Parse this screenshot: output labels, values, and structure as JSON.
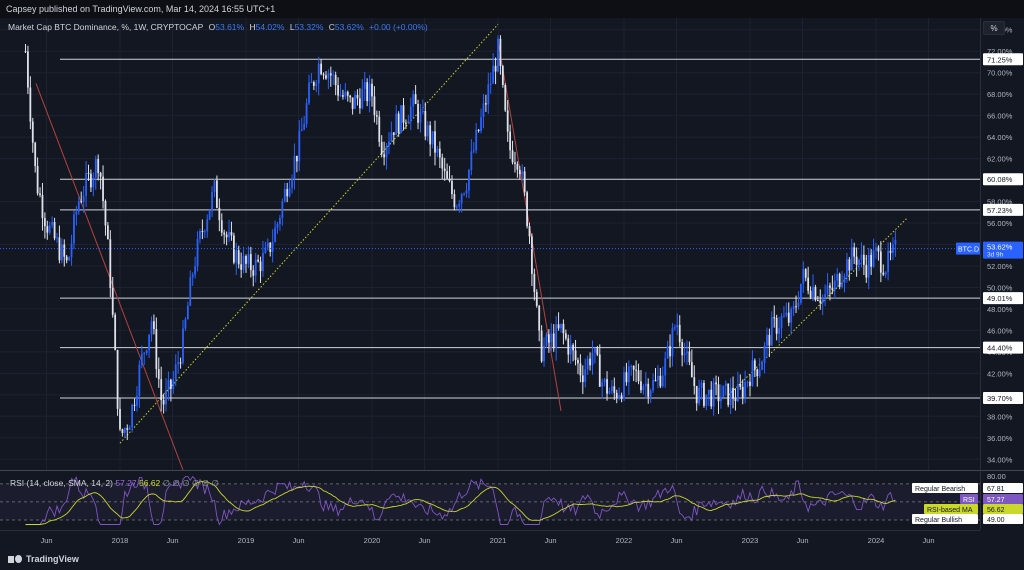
{
  "header": {
    "published": "Capsey published on TradingView.com, Mar 14, 2024 16:55 UTC+1"
  },
  "legend": {
    "symbol": "Market Cap BTC Dominance, %, 1W, CRYPTOCAP",
    "open_label": "O",
    "open": "53.61%",
    "high_label": "H",
    "high": "54.02%",
    "low_label": "L",
    "low": "53.32%",
    "close_label": "C",
    "close": "53.62%",
    "change": "+0.00 (+0.00%)"
  },
  "axis_mode_button": "%",
  "colors": {
    "up": "#2962ff",
    "down": "#e0e3eb",
    "background": "#131722",
    "rsi_line": "#7e57c2",
    "rsi_ma": "#c9d82b",
    "trendline": "#c9d82b",
    "downtrend": "#b2443d"
  },
  "chart_data": {
    "type": "candlestick",
    "symbol": "BTC.D",
    "timeframe": "1W",
    "ylim": [
      33,
      75
    ],
    "y_ticks": [
      "34.00%",
      "36.00%",
      "38.00%",
      "40.00%",
      "42.00%",
      "44.00%",
      "46.00%",
      "48.00%",
      "50.00%",
      "52.00%",
      "54.00%",
      "56.00%",
      "58.00%",
      "62.00%",
      "64.00%",
      "66.00%",
      "68.00%",
      "70.00%",
      "72.00%",
      "74.00%"
    ],
    "x_ticks": [
      "Jun",
      "2018",
      "Jun",
      "2019",
      "Jun",
      "2020",
      "Jun",
      "2021",
      "Jun",
      "2022",
      "Jun",
      "2023",
      "Jun",
      "2024",
      "Jun"
    ],
    "horizontal_levels": [
      {
        "label": "71.25%",
        "value": 71.25
      },
      {
        "label": "60.08%",
        "value": 60.08
      },
      {
        "label": "57.23%",
        "value": 57.23
      },
      {
        "label": "49.01%",
        "value": 49.01
      },
      {
        "label": "44.40%",
        "value": 44.4
      },
      {
        "label": "39.70%",
        "value": 39.7
      }
    ],
    "current_price": {
      "symbol": "BTC.D",
      "value": "53.62%",
      "countdown": "3d 9h"
    },
    "price_path": [
      {
        "t": "2017-04",
        "v": 72
      },
      {
        "t": "2017-05",
        "v": 60
      },
      {
        "t": "2017-06",
        "v": 56
      },
      {
        "t": "2017-08",
        "v": 52
      },
      {
        "t": "2017-09",
        "v": 58
      },
      {
        "t": "2017-10",
        "v": 60
      },
      {
        "t": "2017-11",
        "v": 62
      },
      {
        "t": "2017-12",
        "v": 52
      },
      {
        "t": "2018-01",
        "v": 36
      },
      {
        "t": "2018-02",
        "v": 38
      },
      {
        "t": "2018-03",
        "v": 43
      },
      {
        "t": "2018-04",
        "v": 47
      },
      {
        "t": "2018-05",
        "v": 39
      },
      {
        "t": "2018-06",
        "v": 41
      },
      {
        "t": "2018-07",
        "v": 45
      },
      {
        "t": "2018-08",
        "v": 52
      },
      {
        "t": "2018-09",
        "v": 56
      },
      {
        "t": "2018-10",
        "v": 59
      },
      {
        "t": "2018-11",
        "v": 55
      },
      {
        "t": "2018-12",
        "v": 53
      },
      {
        "t": "2019-01",
        "v": 52
      },
      {
        "t": "2019-02",
        "v": 52
      },
      {
        "t": "2019-03",
        "v": 53
      },
      {
        "t": "2019-04",
        "v": 56
      },
      {
        "t": "2019-05",
        "v": 60
      },
      {
        "t": "2019-06",
        "v": 63
      },
      {
        "t": "2019-07",
        "v": 68
      },
      {
        "t": "2019-08",
        "v": 71
      },
      {
        "t": "2019-09",
        "v": 70
      },
      {
        "t": "2019-10",
        "v": 68
      },
      {
        "t": "2019-11",
        "v": 67
      },
      {
        "t": "2019-12",
        "v": 68
      },
      {
        "t": "2020-01",
        "v": 68
      },
      {
        "t": "2020-02",
        "v": 63
      },
      {
        "t": "2020-03",
        "v": 65
      },
      {
        "t": "2020-04",
        "v": 66
      },
      {
        "t": "2020-05",
        "v": 67
      },
      {
        "t": "2020-06",
        "v": 65
      },
      {
        "t": "2020-07",
        "v": 63
      },
      {
        "t": "2020-08",
        "v": 60
      },
      {
        "t": "2020-09",
        "v": 58
      },
      {
        "t": "2020-10",
        "v": 60
      },
      {
        "t": "2020-11",
        "v": 64
      },
      {
        "t": "2020-12",
        "v": 68
      },
      {
        "t": "2021-01",
        "v": 72
      },
      {
        "t": "2021-02",
        "v": 63
      },
      {
        "t": "2021-03",
        "v": 62
      },
      {
        "t": "2021-04",
        "v": 55
      },
      {
        "t": "2021-05",
        "v": 44
      },
      {
        "t": "2021-06",
        "v": 45
      },
      {
        "t": "2021-07",
        "v": 46
      },
      {
        "t": "2021-08",
        "v": 44
      },
      {
        "t": "2021-09",
        "v": 42
      },
      {
        "t": "2021-10",
        "v": 44
      },
      {
        "t": "2021-11",
        "v": 41
      },
      {
        "t": "2021-12",
        "v": 40
      },
      {
        "t": "2022-01",
        "v": 41
      },
      {
        "t": "2022-02",
        "v": 42
      },
      {
        "t": "2022-03",
        "v": 41
      },
      {
        "t": "2022-04",
        "v": 41
      },
      {
        "t": "2022-05",
        "v": 43
      },
      {
        "t": "2022-06",
        "v": 47
      },
      {
        "t": "2022-07",
        "v": 43
      },
      {
        "t": "2022-08",
        "v": 40
      },
      {
        "t": "2022-09",
        "v": 40
      },
      {
        "t": "2022-10",
        "v": 40
      },
      {
        "t": "2022-11",
        "v": 40
      },
      {
        "t": "2022-12",
        "v": 40
      },
      {
        "t": "2023-01",
        "v": 42
      },
      {
        "t": "2023-02",
        "v": 43
      },
      {
        "t": "2023-03",
        "v": 46
      },
      {
        "t": "2023-04",
        "v": 47
      },
      {
        "t": "2023-05",
        "v": 47
      },
      {
        "t": "2023-06",
        "v": 51
      },
      {
        "t": "2023-07",
        "v": 50
      },
      {
        "t": "2023-08",
        "v": 49
      },
      {
        "t": "2023-09",
        "v": 50
      },
      {
        "t": "2023-10",
        "v": 52
      },
      {
        "t": "2023-11",
        "v": 53
      },
      {
        "t": "2023-12",
        "v": 52
      },
      {
        "t": "2024-01",
        "v": 53
      },
      {
        "t": "2024-02",
        "v": 52
      },
      {
        "t": "2024-03",
        "v": 53.62
      }
    ],
    "trendlines": [
      {
        "from": {
          "t": "2018-01",
          "v": 35.5
        },
        "to": {
          "t": "2021-01",
          "v": 74.5
        },
        "style": "dotted",
        "color": "#c9d82b"
      },
      {
        "from": {
          "t": "2022-11",
          "v": 40
        },
        "to": {
          "t": "2024-04",
          "v": 56.5
        },
        "style": "dotted",
        "color": "#c9d82b"
      },
      {
        "from": {
          "t": "2017-05",
          "v": 69
        },
        "to": {
          "t": "2018-07",
          "v": 33
        },
        "style": "solid",
        "color": "#b2443d"
      },
      {
        "from": {
          "t": "2021-01",
          "v": 73
        },
        "to": {
          "t": "2021-07",
          "v": 38.5
        },
        "style": "solid",
        "color": "#b2443d"
      }
    ]
  },
  "rsi": {
    "legend_label": "RSI (14, close, SMA, 14, 2)",
    "rsi_value": "57.27",
    "ma_value": "56.62",
    "placeholders": "∅ ∅ ∅ ∅ ∅ ∅",
    "axis_top": "80.00",
    "labels": [
      {
        "name": "Regular Bearish",
        "value": "67.81"
      },
      {
        "name": "RSI",
        "value": "57.27"
      },
      {
        "name": "RSI-based MA",
        "value": "56.62"
      },
      {
        "name": "Regular Bullish",
        "value": "49.00"
      }
    ]
  },
  "footer": {
    "brand": "TradingView"
  }
}
